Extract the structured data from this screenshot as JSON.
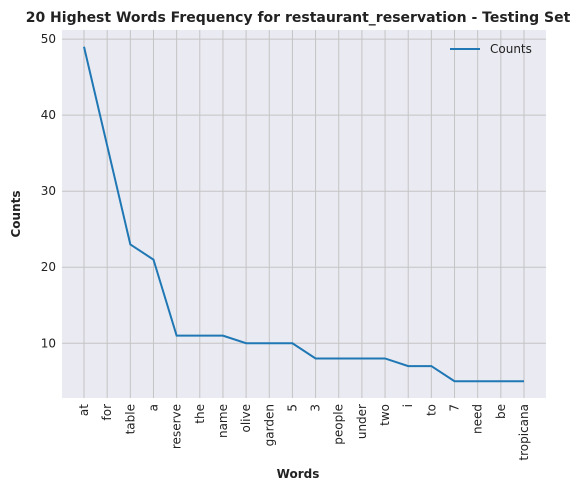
{
  "chart_data": {
    "type": "line",
    "title": "20 Highest Words Frequency for restaurant_reservation - Testing Set",
    "xlabel": "Words",
    "ylabel": "Counts",
    "categories": [
      "at",
      "for",
      "table",
      "a",
      "reserve",
      "the",
      "name",
      "olive",
      "garden",
      "5",
      "3",
      "people",
      "under",
      "two",
      "i",
      "to",
      "7",
      "need",
      "be",
      "tropicana"
    ],
    "series": [
      {
        "name": "Counts",
        "color": "#1f77b4",
        "values": [
          49,
          36,
          23,
          21,
          11,
          11,
          11,
          10,
          10,
          10,
          8,
          8,
          8,
          8,
          7,
          7,
          5,
          5,
          5,
          5
        ]
      }
    ],
    "ylim": [
      2.8,
      51.2
    ],
    "yticks": [
      10,
      20,
      30,
      40,
      50
    ],
    "grid": true,
    "legend": "upper right"
  }
}
